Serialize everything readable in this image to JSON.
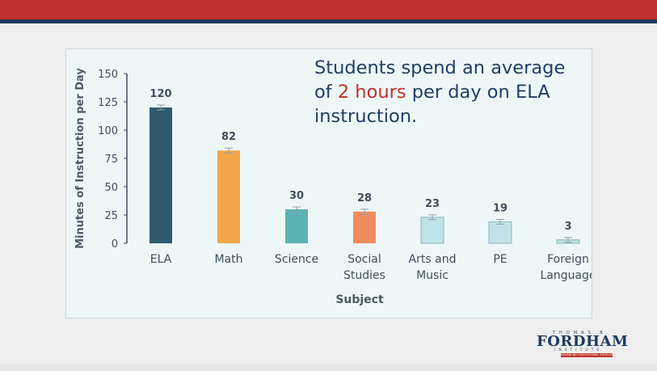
{
  "headline": {
    "before": "Students spend an average of ",
    "highlight": "2 hours",
    "after": " per day on ELA instruction."
  },
  "logo": {
    "top_text": "THOMAS B.",
    "name": "FORDHAM",
    "sub_text": "INSTITUTE",
    "tagline": "ADVANCING EDUCATIONAL EXCELLENCE"
  },
  "colors": {
    "brand_red": "#c0312b",
    "brand_navy": "#1e3a5f"
  },
  "chart_data": {
    "type": "bar",
    "categories": [
      [
        "ELA"
      ],
      [
        "Math"
      ],
      [
        "Science"
      ],
      [
        "Social",
        "Studies"
      ],
      [
        "Arts and",
        "Music"
      ],
      [
        "PE"
      ],
      [
        "Foreign",
        "Language"
      ]
    ],
    "values": [
      120,
      82,
      30,
      28,
      23,
      19,
      3
    ],
    "colors": [
      "#305a6e",
      "#f2a64a",
      "#5bb3b2",
      "#f08c5c",
      "#bfe3e6",
      "#bfe3e6",
      "#bfe3e6"
    ],
    "xlabel": "Subject",
    "ylabel": "Minutes of Instruction per Day",
    "ylim": [
      0,
      150
    ],
    "yticks": [
      0,
      25,
      50,
      75,
      100,
      125,
      150
    ],
    "error_bars": true,
    "grid": false
  }
}
